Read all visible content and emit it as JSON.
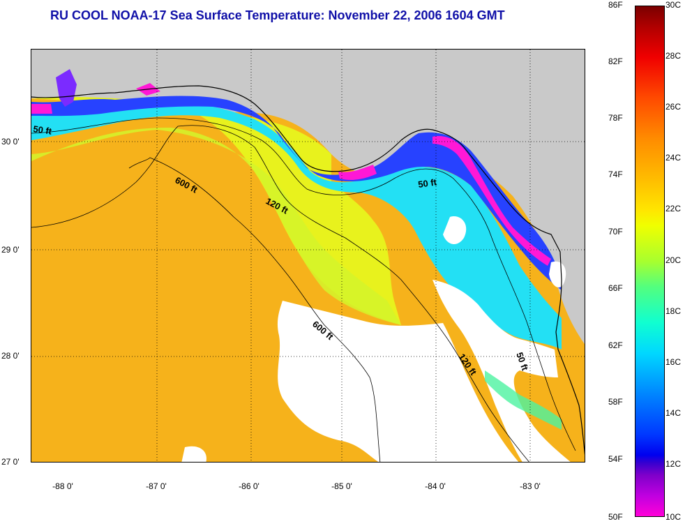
{
  "title": "RU COOL  NOAA-17  Sea Surface Temperature:  November 22, 2006 1604 GMT",
  "latitude_labels": [
    "30 0'",
    "29 0'",
    "28 0'",
    "27 0'"
  ],
  "longitude_labels": [
    "-88 0'",
    "-87 0'",
    "-86 0'",
    "-85 0'",
    "-84 0'",
    "-83 0'"
  ],
  "colorbar": {
    "fahrenheit_labels": [
      "86F",
      "82F",
      "78F",
      "74F",
      "70F",
      "66F",
      "62F",
      "58F",
      "54F",
      "50F"
    ],
    "celsius_labels": [
      "30C",
      "28C",
      "26C",
      "24C",
      "22C",
      "20C",
      "18C",
      "16C",
      "14C",
      "12C",
      "10C"
    ]
  },
  "isobath_labels": [
    "50 ft",
    "600 ft",
    "120 ft",
    "50 ft",
    "600 ft",
    "120 ft",
    "50 ft"
  ],
  "colors": {
    "land": "#c9c9c9",
    "cloud": "#ffffff",
    "warm_offshore": "#f7b21e",
    "shelf_yellow": "#e6f51a",
    "cool_nearshore": "#18e0ff",
    "cold_coast": "#1f3cff",
    "coldest": "#ff18d6"
  }
}
